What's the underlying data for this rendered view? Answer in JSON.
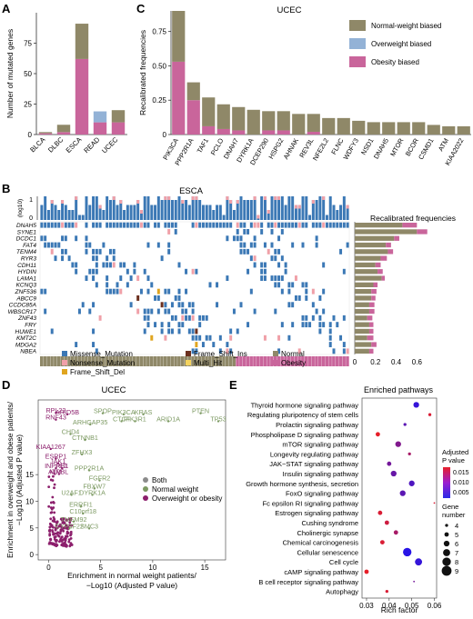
{
  "panels": {
    "A": "A",
    "B": "B",
    "C": "C",
    "D": "D",
    "E": "E"
  },
  "colors": {
    "normal": "#8f8868",
    "overweight": "#93b2d6",
    "obesity": "#c9659b",
    "missense": "#3b78b5",
    "nonsense": "#f0a0a8",
    "frameshift_del": "#e0a51f",
    "frameshift_ins": "#6b2f1e",
    "multi_hit": "#f4d35e",
    "both": "#8b8b8b",
    "normal_weight_pt": "#7d9a63",
    "overweight_or_obesity_pt": "#8c1f6c"
  },
  "chart_data": [
    {
      "id": "A",
      "type": "bar",
      "ylabel": "Number of mutated genes",
      "categories": [
        "BLCA",
        "DLBC",
        "ESCA",
        "READ",
        "UCEC"
      ],
      "ylim": [
        0,
        100
      ],
      "yticks": [
        0,
        25,
        50,
        75
      ],
      "series": [
        {
          "name": "Obesity biased",
          "values": [
            1,
            2,
            62,
            10,
            10
          ]
        },
        {
          "name": "Overweight biased",
          "values": [
            0,
            0,
            0,
            9,
            0
          ]
        },
        {
          "name": "Normal-weight biased",
          "values": [
            1,
            6,
            29,
            0,
            10
          ]
        }
      ]
    },
    {
      "id": "C",
      "type": "bar",
      "title": "UCEC",
      "ylabel": "Recalibrated frequencies",
      "ylim": [
        0,
        0.9
      ],
      "yticks": [
        0,
        0.25,
        0.5,
        0.75
      ],
      "ytick_labels": [
        "0",
        "0.25",
        "0.50",
        "0.75"
      ],
      "categories": [
        "PIK3CA",
        "PPP2R1A",
        "TAF1",
        "PCLO",
        "DNAH7",
        "DYRK1A",
        "DCEP290",
        "HSPG2",
        "AHNAK",
        "REV3L",
        "NFE2L2",
        "FLNC",
        "WDFY3",
        "NSD1",
        "DNAH5",
        "MTOR",
        "BCOR",
        "CSMD1",
        "ATM",
        "KIAA2022"
      ],
      "legend": [
        "Normal-weight biased",
        "Overweight biased",
        "Obesity biased"
      ],
      "series": [
        {
          "name": "Obesity biased",
          "values": [
            0.53,
            0.25,
            0.06,
            0.04,
            0.03,
            0.0,
            0.03,
            0.03,
            0.0,
            0.02,
            0.0,
            0.0,
            0.0,
            0.0,
            0.0,
            0.0,
            0.0,
            0.0,
            0.0,
            0.0
          ]
        },
        {
          "name": "Normal-weight biased",
          "values": [
            0.37,
            0.13,
            0.21,
            0.18,
            0.17,
            0.18,
            0.14,
            0.14,
            0.15,
            0.13,
            0.12,
            0.12,
            0.1,
            0.09,
            0.09,
            0.09,
            0.09,
            0.07,
            0.06,
            0.06
          ]
        }
      ]
    },
    {
      "id": "B",
      "type": "heatmap",
      "title": "ESCA",
      "y_axis_label": "(log10)",
      "y_ticks": [
        "1",
        "0"
      ],
      "genes": [
        "DNAH5",
        "SYNE1",
        "DCDC1",
        "FAT4",
        "TENM4",
        "RYR3",
        "CDH11",
        "HYDIN",
        "LAMA1",
        "KCNQ3",
        "ZNF536",
        "ABCC9",
        "CCDC85A",
        "WBSCR17",
        "ZNF43",
        "FRY",
        "HUWE1",
        "KMT2C",
        "MDGA2",
        "NBEA"
      ],
      "freq_title": "Recalibrated frequencies",
      "freq_ticks": [
        0,
        0.2,
        0.4,
        0.6
      ],
      "freq_tick_labels": [
        "0",
        "0.2",
        "0.4",
        "0.6"
      ],
      "freq_normal": [
        0.46,
        0.6,
        0.38,
        0.3,
        0.32,
        0.25,
        0.2,
        0.22,
        0.26,
        0.18,
        0.16,
        0.16,
        0.14,
        0.14,
        0.12,
        0.14,
        0.14,
        0.12,
        0.16,
        0.14
      ],
      "freq_obesity": [
        0.14,
        0.1,
        0.05,
        0.05,
        0.05,
        0.06,
        0.05,
        0.05,
        0.03,
        0.04,
        0.05,
        0.04,
        0.05,
        0.05,
        0.05,
        0.04,
        0.04,
        0.06,
        0.05,
        0.04
      ],
      "legend": [
        "Missense_Mutation",
        "Nonsense_Mutation",
        "Frame_Shift_Del",
        "Frame_Shift_Ins",
        "Multi_Hit",
        "Normal",
        "Obesity"
      ]
    },
    {
      "id": "D",
      "type": "scatter",
      "title": "UCEC",
      "xlabel": "Enrichment in normal weight patients/ −Log10 (Adjusted P value)",
      "ylabel": "Enrichment in overweight and obese patients/−Log10 (Adjusted P value)",
      "xlim": [
        -1,
        17
      ],
      "ylim": [
        -1,
        29
      ],
      "xticks": [
        0,
        5,
        10,
        15
      ],
      "yticks": [
        0,
        5,
        10,
        15
      ],
      "legend": [
        "Both",
        "Normal weight",
        "Overweight or obesity"
      ],
      "labels_normal_weight": [
        {
          "label": "SPOP",
          "x": 5.2,
          "y": 26.5
        },
        {
          "label": "PIK3CA",
          "x": 7.2,
          "y": 26.3
        },
        {
          "label": "KRAS",
          "x": 9.1,
          "y": 26.3
        },
        {
          "label": "PTEN",
          "x": 14.6,
          "y": 26.5
        },
        {
          "label": "ARHGAP35",
          "x": 4.0,
          "y": 24.4
        },
        {
          "label": "CTCF",
          "x": 7.0,
          "y": 25.0
        },
        {
          "label": "PIK3R1",
          "x": 8.3,
          "y": 25.0
        },
        {
          "label": "ARID1A",
          "x": 11.5,
          "y": 25.0
        },
        {
          "label": "TP53",
          "x": 16.3,
          "y": 25.0
        },
        {
          "label": "CHD4",
          "x": 2.1,
          "y": 22.6
        },
        {
          "label": "CTNNB1",
          "x": 3.5,
          "y": 21.5
        },
        {
          "label": "ZFHX3",
          "x": 3.2,
          "y": 18.8
        },
        {
          "label": "PPP2R1A",
          "x": 3.9,
          "y": 15.8
        },
        {
          "label": "FGFR2",
          "x": 4.9,
          "y": 13.9
        },
        {
          "label": "FBXW7",
          "x": 4.4,
          "y": 12.4
        },
        {
          "label": "U2AF1",
          "x": 2.2,
          "y": 11.2
        },
        {
          "label": "DYRK1A",
          "x": 4.2,
          "y": 11.2
        },
        {
          "label": "ERRFI1",
          "x": 3.1,
          "y": 9.0
        },
        {
          "label": "C10orf18",
          "x": 3.3,
          "y": 7.7
        },
        {
          "label": "TMEM92",
          "x": 2.4,
          "y": 6.2
        },
        {
          "label": "CYP4F22",
          "x": 2.0,
          "y": 4.9
        },
        {
          "label": "SMC3",
          "x": 3.9,
          "y": 4.9
        }
      ],
      "labels_overweight_obesity": [
        {
          "label": "RPL22",
          "x": 0.7,
          "y": 26.6
        },
        {
          "label": "ARID5B",
          "x": 1.8,
          "y": 26.3
        },
        {
          "label": "RNF43",
          "x": 0.7,
          "y": 25.3
        },
        {
          "label": "KIAA1267",
          "x": 0.2,
          "y": 19.8
        },
        {
          "label": "ESRP1",
          "x": 0.7,
          "y": 18.0
        },
        {
          "label": "JAK1",
          "x": 0.9,
          "y": 17.1
        },
        {
          "label": "INPPL1",
          "x": 0.7,
          "y": 16.2
        },
        {
          "label": "RB1",
          "x": 1.3,
          "y": 16.2
        },
        {
          "label": "ATM",
          "x": 0.6,
          "y": 15.1
        },
        {
          "label": "NIPBL",
          "x": 1.0,
          "y": 15.1
        }
      ]
    },
    {
      "id": "E",
      "type": "scatter",
      "title": "Enriched pathways",
      "xlabel": "Rich factor",
      "xlim": [
        0.028,
        0.061
      ],
      "xticks": [
        0.03,
        0.04,
        0.05,
        0.06
      ],
      "xtick_labels": [
        "0.03",
        "0.04",
        "0.05",
        "0.06"
      ],
      "color_title": "Adjusted P value",
      "color_ticks": [
        "0.015",
        "0.010",
        "0.005"
      ],
      "size_title": "Gene number",
      "size_ticks": [
        "4",
        "5",
        "6",
        "7",
        "8",
        "9"
      ],
      "pathways": [
        {
          "name": "Thyroid hormone signaling pathway",
          "rich": 0.052,
          "genes": 6,
          "p": 0.003
        },
        {
          "name": "Regulating pluripotency of stem cells",
          "rich": 0.058,
          "genes": 4,
          "p": 0.016
        },
        {
          "name": "Prolactin signaling pathway",
          "rich": 0.047,
          "genes": 4,
          "p": 0.006
        },
        {
          "name": "Phospholipase D signaling pathway",
          "rich": 0.035,
          "genes": 5,
          "p": 0.017
        },
        {
          "name": "mTOR signaling pathway",
          "rich": 0.044,
          "genes": 6,
          "p": 0.009
        },
        {
          "name": "Longevity regulating pathway",
          "rich": 0.049,
          "genes": 4,
          "p": 0.012
        },
        {
          "name": "JAK−STAT signaling pathway",
          "rich": 0.04,
          "genes": 5,
          "p": 0.008
        },
        {
          "name": "Insulin signaling pathway",
          "rich": 0.042,
          "genes": 6,
          "p": 0.007
        },
        {
          "name": "Growth hormone synthesis, secretion",
          "rich": 0.05,
          "genes": 6,
          "p": 0.005
        },
        {
          "name": "FoxO signaling pathway",
          "rich": 0.046,
          "genes": 6,
          "p": 0.006
        },
        {
          "name": "Fc epsilon RI signaling pathway",
          "rich": 0.06,
          "genes": 3,
          "p": 0.016
        },
        {
          "name": "Estrogen signaling pathway",
          "rich": 0.036,
          "genes": 5,
          "p": 0.016
        },
        {
          "name": "Cushing syndrome",
          "rich": 0.039,
          "genes": 5,
          "p": 0.015
        },
        {
          "name": "Cholinergic synapse",
          "rich": 0.043,
          "genes": 5,
          "p": 0.012
        },
        {
          "name": "Chemical carcinogenesis",
          "rich": 0.037,
          "genes": 5,
          "p": 0.016
        },
        {
          "name": "Cellular senescence",
          "rich": 0.048,
          "genes": 8,
          "p": 0.002
        },
        {
          "name": "Cell cycle",
          "rich": 0.053,
          "genes": 7,
          "p": 0.003
        },
        {
          "name": "cAMP signaling pathway",
          "rich": 0.03,
          "genes": 5,
          "p": 0.017
        },
        {
          "name": "B cell receptor signaling pathway",
          "rich": 0.051,
          "genes": 3,
          "p": 0.008
        },
        {
          "name": "Autophagy",
          "rich": 0.039,
          "genes": 4,
          "p": 0.016
        }
      ]
    }
  ]
}
